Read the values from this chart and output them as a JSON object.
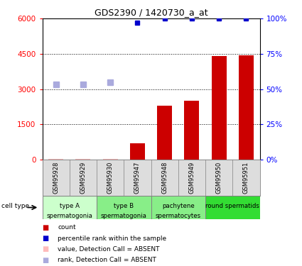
{
  "title": "GDS2390 / 1420730_a_at",
  "samples": [
    "GSM95928",
    "GSM95929",
    "GSM95930",
    "GSM95947",
    "GSM95948",
    "GSM95949",
    "GSM95950",
    "GSM95951"
  ],
  "bar_values": [
    30,
    30,
    30,
    700,
    2300,
    2520,
    4400,
    4450
  ],
  "bar_absent": [
    true,
    true,
    true,
    false,
    false,
    false,
    false,
    false
  ],
  "percentile_values_pct": [
    null,
    null,
    null,
    97,
    100,
    100,
    100,
    100
  ],
  "rank_absent_values": [
    3200,
    3200,
    3300,
    null,
    null,
    null,
    null,
    null
  ],
  "bar_color": "#cc0000",
  "bar_absent_color": "#ffbbbb",
  "percentile_color": "#0000cc",
  "rank_absent_color": "#aaaadd",
  "ylim_left": [
    0,
    6000
  ],
  "ylim_right": [
    0,
    100
  ],
  "yticks_left": [
    0,
    1500,
    3000,
    4500,
    6000
  ],
  "yticks_right": [
    0,
    25,
    50,
    75,
    100
  ],
  "ytick_labels_right": [
    "0%",
    "25%",
    "50%",
    "75%",
    "100%"
  ],
  "cell_groups": [
    {
      "label": "type A\nspermatogonia",
      "start": 0,
      "end": 2,
      "color": "#ccffcc"
    },
    {
      "label": "type B\nspermatogonia",
      "start": 2,
      "end": 4,
      "color": "#88ee88"
    },
    {
      "label": "pachytene\nspermatocytes",
      "start": 4,
      "end": 6,
      "color": "#88ee88"
    },
    {
      "label": "round spermatids",
      "start": 6,
      "end": 8,
      "color": "#33dd33"
    }
  ],
  "bg_color": "#dddddd",
  "legend_items": [
    {
      "label": "count",
      "color": "#cc0000"
    },
    {
      "label": "percentile rank within the sample",
      "color": "#0000cc"
    },
    {
      "label": "value, Detection Call = ABSENT",
      "color": "#ffbbbb"
    },
    {
      "label": "rank, Detection Call = ABSENT",
      "color": "#aaaadd"
    }
  ]
}
